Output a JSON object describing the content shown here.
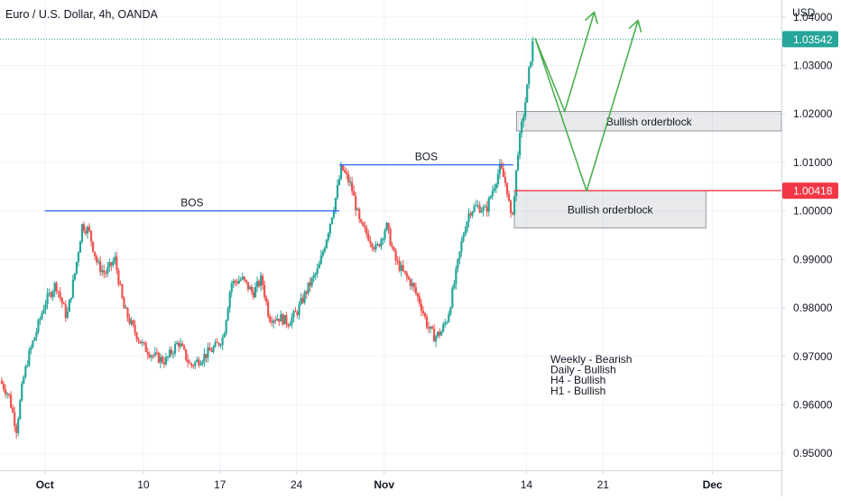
{
  "chart_data": {
    "type": "candlestick",
    "title": "Euro / U.S. Dollar, 4h, OANDA",
    "currency_label": "USD",
    "price_axis": {
      "ylim": [
        0.9465,
        1.0435
      ],
      "ticks": [
        {
          "value": 1.04,
          "label": "1.04000"
        },
        {
          "value": 1.03,
          "label": "1.03000"
        },
        {
          "value": 1.02,
          "label": "1.02000"
        },
        {
          "value": 1.01,
          "label": "1.01000"
        },
        {
          "value": 1.0,
          "label": "1.00000"
        },
        {
          "value": 0.99,
          "label": "0.99000"
        },
        {
          "value": 0.98,
          "label": "0.98000"
        },
        {
          "value": 0.97,
          "label": "0.97000"
        },
        {
          "value": 0.96,
          "label": "0.96000"
        },
        {
          "value": 0.95,
          "label": "0.95000"
        }
      ]
    },
    "time_axis": {
      "unit": "day",
      "range": [
        -4.1,
        67.3
      ],
      "ticks": [
        {
          "day": 0,
          "label": "Oct",
          "bold": true
        },
        {
          "day": 9,
          "label": "10"
        },
        {
          "day": 16,
          "label": "17"
        },
        {
          "day": 23,
          "label": "24"
        },
        {
          "day": 31,
          "label": "Nov",
          "bold": true
        },
        {
          "day": 44,
          "label": "14"
        },
        {
          "day": 51,
          "label": "21"
        },
        {
          "day": 61,
          "label": "Dec",
          "bold": true
        }
      ]
    },
    "colors": {
      "up": "#26a69a",
      "down": "#ef5350",
      "bos": "#2962ff",
      "arrow": "#4caf50"
    },
    "price_path": [
      [
        -4.1,
        0.965
      ],
      [
        -3.3,
        0.962
      ],
      [
        -2.6,
        0.955
      ],
      [
        -2.0,
        0.965
      ],
      [
        -1.5,
        0.97
      ],
      [
        -0.8,
        0.975
      ],
      [
        0.0,
        0.981
      ],
      [
        1.0,
        0.985
      ],
      [
        2.0,
        0.978
      ],
      [
        2.8,
        0.988
      ],
      [
        3.4,
        0.997
      ],
      [
        4.0,
        0.996
      ],
      [
        4.8,
        0.989
      ],
      [
        5.5,
        0.987
      ],
      [
        6.4,
        0.99
      ],
      [
        7.2,
        0.98
      ],
      [
        8.0,
        0.976
      ],
      [
        9.0,
        0.972
      ],
      [
        10.0,
        0.97
      ],
      [
        11.0,
        0.969
      ],
      [
        12.2,
        0.973
      ],
      [
        13.3,
        0.968
      ],
      [
        14.5,
        0.97
      ],
      [
        15.6,
        0.972
      ],
      [
        16.3,
        0.974
      ],
      [
        17.0,
        0.985
      ],
      [
        18.0,
        0.986
      ],
      [
        19.0,
        0.983
      ],
      [
        19.8,
        0.986
      ],
      [
        20.5,
        0.978
      ],
      [
        21.5,
        0.978
      ],
      [
        22.2,
        0.977
      ],
      [
        23.0,
        0.979
      ],
      [
        24.0,
        0.984
      ],
      [
        25.0,
        0.988
      ],
      [
        26.0,
        0.997
      ],
      [
        26.6,
        1.003
      ],
      [
        27.1,
        1.009
      ],
      [
        28.0,
        1.005
      ],
      [
        28.8,
        0.997
      ],
      [
        29.5,
        0.995
      ],
      [
        30.3,
        0.992
      ],
      [
        31.2,
        0.997
      ],
      [
        32.0,
        0.99
      ],
      [
        32.8,
        0.987
      ],
      [
        33.5,
        0.985
      ],
      [
        34.3,
        0.981
      ],
      [
        35.0,
        0.976
      ],
      [
        35.6,
        0.974
      ],
      [
        36.2,
        0.975
      ],
      [
        36.8,
        0.978
      ],
      [
        37.4,
        0.985
      ],
      [
        38.2,
        0.995
      ],
      [
        38.8,
        1.0
      ],
      [
        39.5,
        1.001
      ],
      [
        40.3,
        1.0
      ],
      [
        41.0,
        1.005
      ],
      [
        41.6,
        1.009
      ],
      [
        42.2,
        1.005
      ],
      [
        42.6,
        0.998
      ],
      [
        42.9,
        1.003
      ],
      [
        43.2,
        1.012
      ],
      [
        43.6,
        1.018
      ],
      [
        44.0,
        1.024
      ],
      [
        44.3,
        1.03
      ],
      [
        44.6,
        1.035
      ]
    ],
    "last_price": {
      "value": 1.03542,
      "label": "1.03542",
      "color": "#26a69a"
    },
    "level_marker": {
      "value": 1.00418,
      "label": "1.00418",
      "color": "#f23645"
    },
    "annotations": {
      "bos": [
        {
          "label": "BOS",
          "price": 1.0,
          "from_day": 0,
          "to_day": 26.9
        },
        {
          "label": "BOS",
          "price": 1.0095,
          "from_day": 26.9,
          "to_day": 42.8
        }
      ],
      "orderblocks": [
        {
          "label": "Bullish orderblock",
          "top": 1.0205,
          "bottom": 1.0165,
          "from_day": 43.1,
          "to_day": 67.3
        },
        {
          "label": "Bullish orderblock",
          "top": 1.00418,
          "bottom": 0.9965,
          "from_day": 42.9,
          "to_day": 60.4
        }
      ],
      "projections": [
        [
          [
            44.8,
            1.0356
          ],
          [
            47.5,
            1.0205
          ],
          [
            50.2,
            1.041
          ]
        ],
        [
          [
            44.8,
            1.0356
          ],
          [
            49.5,
            1.0041
          ],
          [
            54.2,
            1.0393
          ]
        ]
      ],
      "bias_notes": [
        "Weekly - Bearish",
        "Daily - Bullish",
        "H4 - Bullish",
        "H1 - Bullish"
      ]
    }
  }
}
